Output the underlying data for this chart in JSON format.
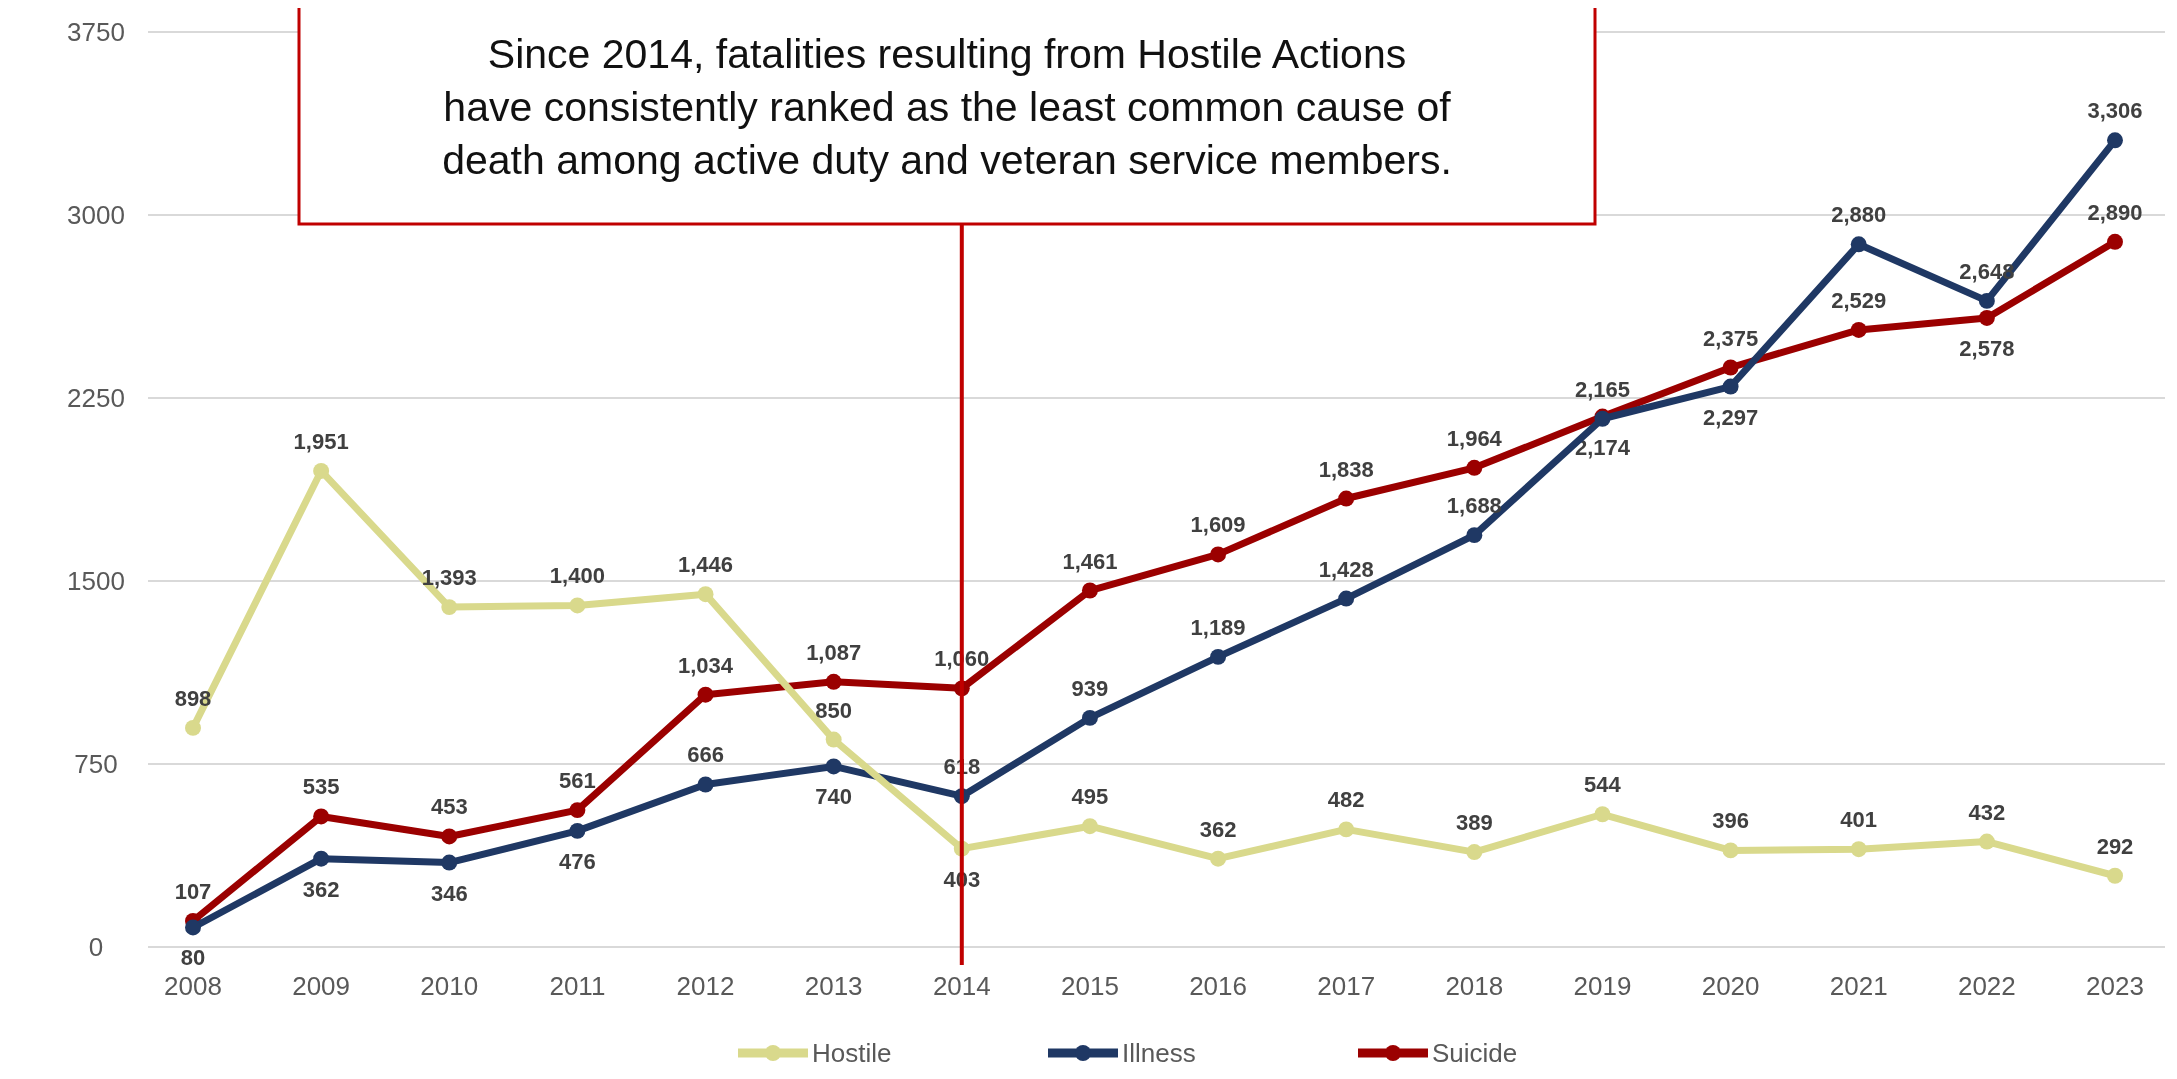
{
  "chart_data": {
    "type": "line",
    "categories": [
      "2008",
      "2009",
      "2010",
      "2011",
      "2012",
      "2013",
      "2014",
      "2015",
      "2016",
      "2017",
      "2018",
      "2019",
      "2020",
      "2021",
      "2022",
      "2023"
    ],
    "series": [
      {
        "name": "Hostile",
        "color": "#d9d98c",
        "values": [
          898,
          1951,
          1393,
          1400,
          1446,
          850,
          403,
          495,
          362,
          482,
          389,
          544,
          396,
          401,
          432,
          292
        ],
        "value_labels": [
          "898",
          "1,951",
          "1,393",
          "1,400",
          "1,446",
          "850",
          "403",
          "495",
          "362",
          "482",
          "389",
          "544",
          "396",
          "401",
          "432",
          "292"
        ]
      },
      {
        "name": "Illness",
        "color": "#1f3864",
        "values": [
          80,
          362,
          346,
          476,
          666,
          740,
          618,
          939,
          1189,
          1428,
          1688,
          2165,
          2297,
          2880,
          2648,
          3306
        ],
        "value_labels": [
          "80",
          "362",
          "346",
          "476",
          "666",
          "740",
          "618",
          "939",
          "1,189",
          "1,428",
          "1,688",
          "2,165",
          "2,297",
          "2,880",
          "2,648",
          "3,306"
        ]
      },
      {
        "name": "Suicide",
        "color": "#9b0000",
        "values": [
          107,
          535,
          453,
          561,
          1034,
          1087,
          1060,
          1461,
          1609,
          1838,
          1964,
          2174,
          2375,
          2529,
          2578,
          2890
        ],
        "value_labels": [
          "107",
          "535",
          "453",
          "561",
          "1,034",
          "1,087",
          "1,060",
          "1,461",
          "1,609",
          "1,838",
          "1,964",
          "2,174",
          "2,375",
          "2,529",
          "2,578",
          "2,890"
        ]
      }
    ],
    "ylim": [
      0,
      3750
    ],
    "yticks": [
      0,
      750,
      1500,
      2250,
      3000,
      3750
    ],
    "grid": "y",
    "legend": "bottom",
    "marker": "circle",
    "ref_lines": [
      {
        "axis": "x",
        "value": "2014",
        "color": "#c00000"
      }
    ],
    "annotations": [
      "Since 2014, fatalities resulting from Hostile Actions have consistently ranked as the least common cause of death among active duty and veteran service members."
    ]
  }
}
